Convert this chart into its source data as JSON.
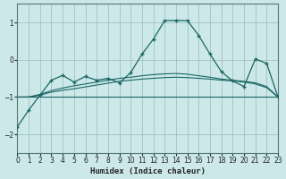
{
  "xlabel": "Humidex (Indice chaleur)",
  "bg_color": "#cce8e8",
  "grid_color": "#99bbbb",
  "line_color": "#1a6666",
  "xlim": [
    0,
    23
  ],
  "ylim": [
    -2.5,
    1.5
  ],
  "yticks": [
    -2,
    -1,
    0,
    1
  ],
  "xticks": [
    0,
    1,
    2,
    3,
    4,
    5,
    6,
    7,
    8,
    9,
    10,
    11,
    12,
    13,
    14,
    15,
    16,
    17,
    18,
    19,
    20,
    21,
    22,
    23
  ],
  "line_flat_y": [
    -1.0,
    -1.0,
    -1.0,
    -1.0,
    -1.0,
    -1.0,
    -1.0,
    -1.0,
    -1.0,
    -1.0,
    -1.0,
    -1.0,
    -1.0,
    -1.0,
    -1.0,
    -1.0,
    -1.0,
    -1.0,
    -1.0,
    -1.0,
    -1.0,
    -1.0,
    -1.0,
    -1.0
  ],
  "line_mid1_y": [
    -1.0,
    -1.0,
    -0.95,
    -0.87,
    -0.82,
    -0.78,
    -0.73,
    -0.68,
    -0.63,
    -0.58,
    -0.55,
    -0.52,
    -0.5,
    -0.48,
    -0.47,
    -0.48,
    -0.5,
    -0.52,
    -0.55,
    -0.57,
    -0.6,
    -0.65,
    -0.75,
    -1.0
  ],
  "line_mid2_y": [
    -1.0,
    -1.0,
    -0.93,
    -0.83,
    -0.76,
    -0.7,
    -0.65,
    -0.6,
    -0.55,
    -0.5,
    -0.47,
    -0.43,
    -0.4,
    -0.38,
    -0.37,
    -0.39,
    -0.43,
    -0.47,
    -0.52,
    -0.55,
    -0.58,
    -0.62,
    -0.72,
    -1.0
  ],
  "line_main_y": [
    -1.8,
    -1.35,
    -0.95,
    -0.55,
    -0.42,
    -0.6,
    -0.45,
    -0.55,
    -0.5,
    -0.62,
    -0.35,
    0.15,
    0.55,
    1.05,
    1.05,
    1.05,
    0.65,
    0.15,
    -0.32,
    -0.57,
    -0.72,
    0.02,
    -0.1,
    -1.0
  ]
}
